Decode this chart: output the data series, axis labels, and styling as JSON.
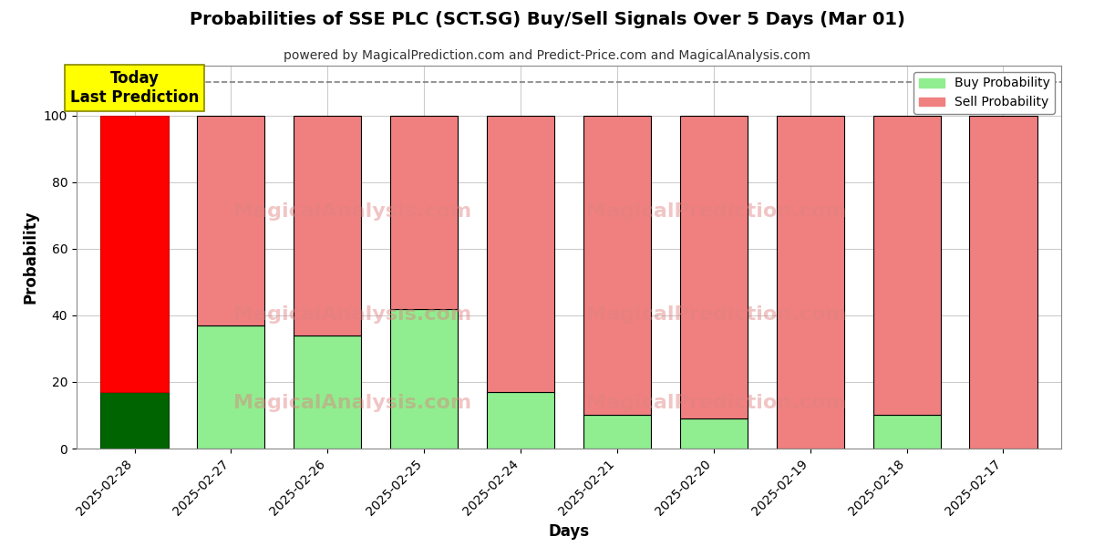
{
  "title": "Probabilities of SSE PLC (SCT.SG) Buy/Sell Signals Over 5 Days (Mar 01)",
  "subtitle": "powered by MagicalPrediction.com and Predict-Price.com and MagicalAnalysis.com",
  "xlabel": "Days",
  "ylabel": "Probability",
  "dates": [
    "2025-02-28",
    "2025-02-27",
    "2025-02-26",
    "2025-02-25",
    "2025-02-24",
    "2025-02-21",
    "2025-02-20",
    "2025-02-19",
    "2025-02-18",
    "2025-02-17"
  ],
  "buy_values": [
    17,
    37,
    34,
    42,
    17,
    10,
    9,
    0,
    10,
    0
  ],
  "sell_values": [
    83,
    63,
    66,
    58,
    83,
    90,
    91,
    100,
    90,
    100
  ],
  "buy_colors": [
    "#006400",
    "#90EE90",
    "#90EE90",
    "#90EE90",
    "#90EE90",
    "#90EE90",
    "#90EE90",
    "#90EE90",
    "#90EE90",
    "#90EE90"
  ],
  "sell_colors": [
    "#FF0000",
    "#F08080",
    "#F08080",
    "#F08080",
    "#F08080",
    "#F08080",
    "#F08080",
    "#F08080",
    "#F08080",
    "#F08080"
  ],
  "today_label": "Today\nLast Prediction",
  "today_label_color": "#FFFF00",
  "legend_buy_label": "Buy Probability",
  "legend_sell_label": "Sell Probability",
  "ylim": [
    0,
    115
  ],
  "yticks": [
    0,
    20,
    40,
    60,
    80,
    100
  ],
  "dashed_line_y": 110,
  "watermark_line1": "MagicalAnalysis.com",
  "watermark_line2": "MagicalPrediction.com",
  "background_color": "#ffffff",
  "grid_color": "#cccccc"
}
